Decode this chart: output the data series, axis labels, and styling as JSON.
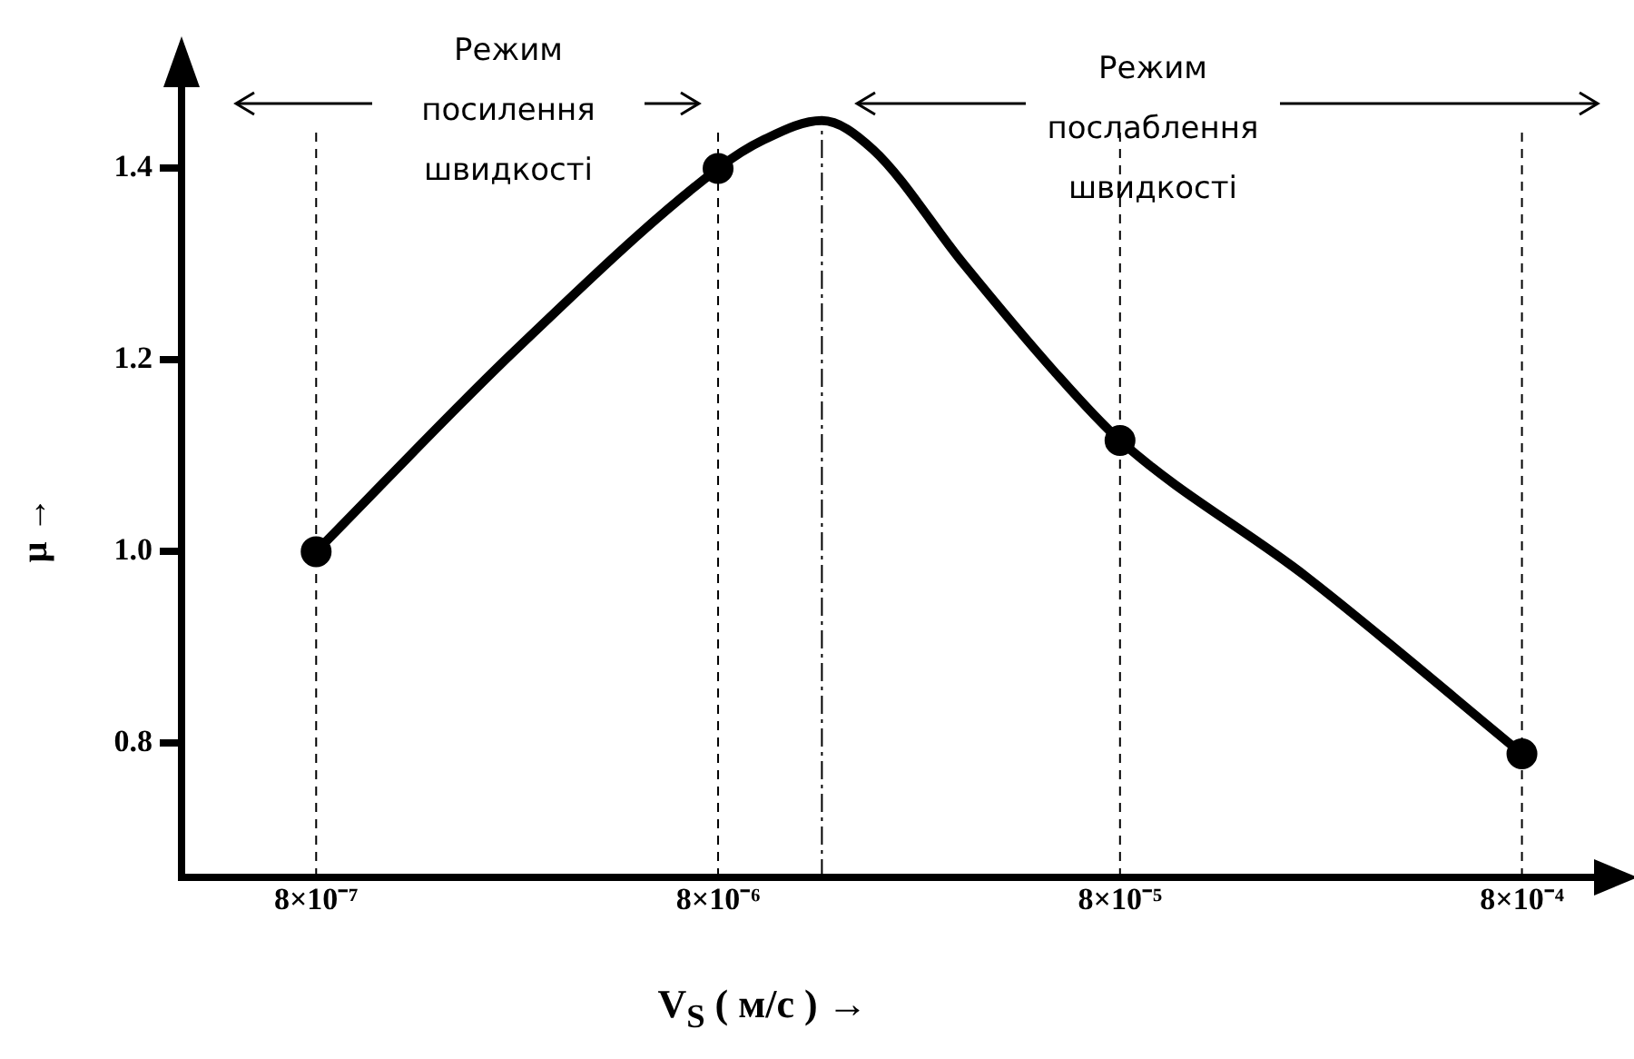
{
  "chart_data": {
    "type": "line",
    "xlabel": "V$_{S}$ ( м/с ) →",
    "ylabel": "μ →",
    "log": "x",
    "xlim": [
      3.7e-07,
      0.00137
    ],
    "xticks": [
      {
        "value": 8e-07,
        "label": "8×10⁻⁷"
      },
      {
        "value": 8e-06,
        "label": "8×10⁻⁶"
      },
      {
        "value": 8e-05,
        "label": "8×10⁻⁵"
      },
      {
        "value": 0.0008,
        "label": "8×10⁻⁴"
      }
    ],
    "ylim": [
      0.66,
      1.5
    ],
    "yticks": [
      {
        "value": 0.8,
        "label": "0.8"
      },
      {
        "value": 1.0,
        "label": "1.0"
      },
      {
        "value": 1.2,
        "label": "1.2"
      },
      {
        "value": 1.4,
        "label": "1.4"
      }
    ],
    "series": [
      {
        "color": "#000000",
        "marker": "none",
        "x": [
          8e-07,
          2.5e-06,
          8e-06,
          1.04e-05,
          1.45e-05,
          1.94e-05,
          3.27e-05,
          5.44e-05,
          8e-05,
          0.000234,
          0.0008
        ],
        "values": [
          1.0,
          1.21,
          1.4,
          1.43,
          1.45,
          1.42,
          1.3,
          1.19,
          1.116,
          0.973,
          0.789
        ]
      },
      {
        "type": "scatter",
        "color": "#000000",
        "marker": "circle",
        "x": [
          8e-07,
          8e-06,
          8e-05,
          0.0008
        ],
        "values": [
          1.0,
          1.4,
          1.116,
          0.789
        ]
      }
    ],
    "ref_lines": [
      {
        "axis": "x",
        "value": 8e-07,
        "line_style": "dashed"
      },
      {
        "axis": "x",
        "value": 8e-06,
        "line_style": "dashed"
      },
      {
        "axis": "x",
        "value": 1.45e-05,
        "line_style": "dashdot"
      },
      {
        "axis": "x",
        "value": 8e-05,
        "line_style": "dashed"
      },
      {
        "axis": "x",
        "value": 0.0008,
        "line_style": "dashed"
      }
    ],
    "annotations": [
      "Режим посилення швидкості",
      "Режим послаблення швидкості"
    ]
  }
}
